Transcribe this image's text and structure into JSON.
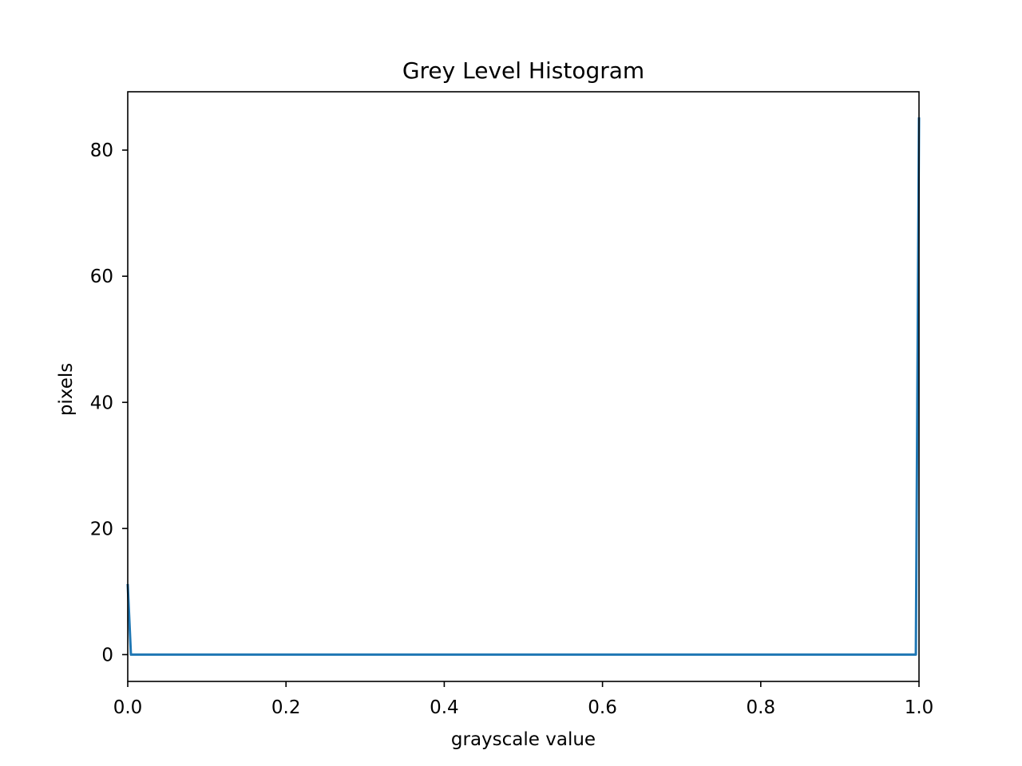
{
  "chart_data": {
    "type": "line",
    "title": "Grey Level Histogram",
    "xlabel": "grayscale value",
    "ylabel": "pixels",
    "xlim": [
      0.0,
      1.0
    ],
    "ylim": [
      -4.25,
      89.25
    ],
    "xticks": [
      0.0,
      0.2,
      0.4,
      0.6,
      0.8,
      1.0
    ],
    "xtick_labels": [
      "0.0",
      "0.2",
      "0.4",
      "0.6",
      "0.8",
      "1.0"
    ],
    "yticks": [
      0,
      20,
      40,
      60,
      80
    ],
    "ytick_labels": [
      "0",
      "20",
      "40",
      "60",
      "80"
    ],
    "grid": false,
    "legend": "none",
    "series": [
      {
        "color": "#1f77b4",
        "x": [
          0.0,
          0.004,
          0.996,
          1.0
        ],
        "y": [
          11,
          0,
          0,
          85
        ]
      }
    ]
  }
}
